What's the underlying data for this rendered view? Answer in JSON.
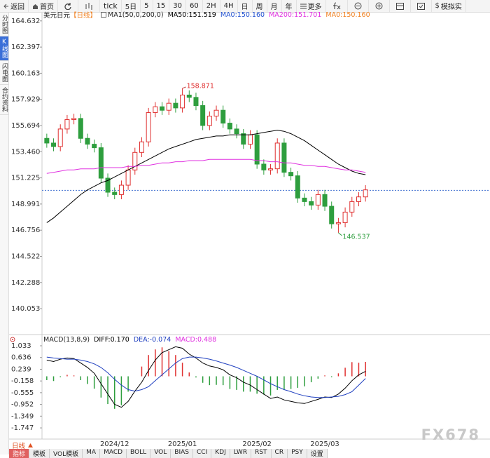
{
  "toolbar": {
    "buttons": [
      "返回",
      "首页",
      "tick",
      "5日",
      "5",
      "15",
      "30",
      "60",
      "2H",
      "4H",
      "日",
      "周",
      "月",
      "年",
      "更多",
      "模拟实"
    ]
  },
  "sidebar": {
    "tabs": [
      "分时图",
      "K线图",
      "闪电图",
      "合约资料"
    ]
  },
  "chart_data": [
    {
      "type": "candlestick",
      "title": "美元日元",
      "period": "【日线】",
      "params": "MA1(50,0,200,0)",
      "extra_labels": [
        {
          "text": "MA0:150.160",
          "color": "#2050d0"
        },
        {
          "text": "MA0:150.160",
          "color": "#f08020"
        }
      ],
      "categories": [
        null,
        null,
        null,
        null,
        null,
        null,
        null,
        null,
        null,
        null,
        "2024/12",
        null,
        null,
        null,
        null,
        null,
        null,
        null,
        null,
        null,
        "2025/01",
        null,
        null,
        null,
        null,
        null,
        null,
        null,
        null,
        null,
        null,
        "2025/02",
        null,
        null,
        null,
        null,
        null,
        null,
        null,
        null,
        null,
        "2025/03",
        null,
        null,
        null,
        null,
        null,
        null
      ],
      "open": [
        154.6,
        154.2,
        153.9,
        155.4,
        156.2,
        156.3,
        154.6,
        154.1,
        153.8,
        151.2,
        150.0,
        149.8,
        150.6,
        151.9,
        153.4,
        154.3,
        156.8,
        157.3,
        157.0,
        157.6,
        157.2,
        158.3,
        158.1,
        157.4,
        155.7,
        156.5,
        157.0,
        155.9,
        155.4,
        155.0,
        154.1,
        154.9,
        152.4,
        151.9,
        152.0,
        154.2,
        151.7,
        151.4,
        149.5,
        149.2,
        148.9,
        149.8,
        148.8,
        147.3,
        147.4,
        148.3,
        149.2,
        149.6
      ],
      "high": [
        155.0,
        154.6,
        155.8,
        156.6,
        156.7,
        156.7,
        155.0,
        154.5,
        154.2,
        151.6,
        150.4,
        151.0,
        152.3,
        153.8,
        154.7,
        157.2,
        157.7,
        157.7,
        158.0,
        158.0,
        158.871,
        158.7,
        158.5,
        157.8,
        156.9,
        157.4,
        157.4,
        156.3,
        155.8,
        155.4,
        155.3,
        155.3,
        152.8,
        152.4,
        154.6,
        154.6,
        152.1,
        151.8,
        149.9,
        149.6,
        150.2,
        150.2,
        149.2,
        147.8,
        148.7,
        149.6,
        150.0,
        150.6
      ],
      "low": [
        153.8,
        153.5,
        153.5,
        155.0,
        155.8,
        154.2,
        153.7,
        153.4,
        150.8,
        149.6,
        149.4,
        149.4,
        150.2,
        151.5,
        153.0,
        153.9,
        156.4,
        156.6,
        156.6,
        156.8,
        156.8,
        157.7,
        157.0,
        155.3,
        155.3,
        156.1,
        155.5,
        155.0,
        154.6,
        153.7,
        153.7,
        152.0,
        151.5,
        151.5,
        151.6,
        151.3,
        151.0,
        149.1,
        148.8,
        148.5,
        148.5,
        148.4,
        146.9,
        146.537,
        147.0,
        147.9,
        148.8,
        149.2
      ],
      "close": [
        154.2,
        153.9,
        155.4,
        156.2,
        156.3,
        154.6,
        154.1,
        153.8,
        151.2,
        150.0,
        149.8,
        150.6,
        151.9,
        153.4,
        154.3,
        156.8,
        157.3,
        157.0,
        157.6,
        157.2,
        158.3,
        158.1,
        157.4,
        155.7,
        156.5,
        157.0,
        155.9,
        155.4,
        155.0,
        154.1,
        154.9,
        152.4,
        151.9,
        152.0,
        154.2,
        151.7,
        151.4,
        149.5,
        149.2,
        148.9,
        149.8,
        148.8,
        147.3,
        147.4,
        148.3,
        149.2,
        149.6,
        150.2
      ],
      "up_color": "#e03030",
      "down_color": "#2e9e3e",
      "series": [
        {
          "name": "MA50:151.519",
          "color": "#000000",
          "values": [
            147.4,
            147.8,
            148.3,
            148.8,
            149.3,
            149.8,
            150.2,
            150.5,
            150.8,
            151.0,
            151.3,
            151.6,
            151.9,
            152.2,
            152.5,
            152.8,
            153.1,
            153.4,
            153.7,
            153.9,
            154.1,
            154.3,
            154.5,
            154.6,
            154.7,
            154.8,
            154.8,
            154.9,
            154.9,
            154.9,
            154.9,
            155.0,
            155.1,
            155.2,
            155.3,
            155.2,
            155.0,
            154.7,
            154.4,
            154.0,
            153.6,
            153.2,
            152.8,
            152.4,
            152.1,
            151.8,
            151.6,
            151.5
          ]
        },
        {
          "name": "MA200:151.701",
          "color": "#e030e0",
          "values": [
            151.6,
            151.7,
            151.8,
            151.9,
            151.9,
            152.0,
            152.0,
            152.0,
            152.1,
            152.1,
            152.1,
            152.1,
            152.2,
            152.2,
            152.3,
            152.3,
            152.4,
            152.5,
            152.5,
            152.6,
            152.6,
            152.7,
            152.7,
            152.7,
            152.8,
            152.8,
            152.8,
            152.8,
            152.8,
            152.8,
            152.8,
            152.7,
            152.7,
            152.6,
            152.6,
            152.5,
            152.5,
            152.4,
            152.3,
            152.3,
            152.2,
            152.2,
            152.1,
            152.0,
            151.9,
            151.9,
            151.8,
            151.7
          ]
        }
      ],
      "reference_line": 150.16,
      "ylim": [
        138.5,
        165.1
      ],
      "yticks": [
        164.632,
        162.397,
        160.163,
        157.929,
        155.694,
        {
          "value": 153.46,
          "label": "153.460"
        },
        151.225,
        148.991,
        146.756,
        144.522,
        142.288,
        140.053
      ]
    },
    {
      "type": "macd",
      "title": "MACD(13,8,9)",
      "up_color": "#e03030",
      "down_color": "#2e9e3e",
      "series": [
        {
          "name": "DIFF:0.170",
          "color": "#000000",
          "kind": "line",
          "values": [
            0.55,
            0.5,
            0.58,
            0.62,
            0.6,
            0.45,
            0.3,
            0.1,
            -0.25,
            -0.6,
            -0.95,
            -1.05,
            -0.85,
            -0.5,
            -0.2,
            0.2,
            0.55,
            0.8,
            0.9,
            1.0,
            0.95,
            0.75,
            0.62,
            0.45,
            0.35,
            0.3,
            0.22,
            0.05,
            -0.05,
            -0.2,
            -0.3,
            -0.45,
            -0.6,
            -0.75,
            -0.7,
            -0.8,
            -0.85,
            -0.9,
            -0.92,
            -0.85,
            -0.78,
            -0.7,
            -0.72,
            -0.6,
            -0.4,
            -0.15,
            0.05,
            0.17
          ]
        },
        {
          "name": "DEA:-0.074",
          "color": "#2040c0",
          "kind": "line",
          "values": [
            0.65,
            0.62,
            0.6,
            0.58,
            0.58,
            0.55,
            0.5,
            0.42,
            0.3,
            0.12,
            -0.1,
            -0.3,
            -0.45,
            -0.5,
            -0.45,
            -0.35,
            -0.15,
            0.05,
            0.25,
            0.45,
            0.6,
            0.65,
            0.65,
            0.62,
            0.58,
            0.52,
            0.45,
            0.38,
            0.3,
            0.2,
            0.1,
            0.0,
            -0.12,
            -0.25,
            -0.35,
            -0.45,
            -0.52,
            -0.6,
            -0.66,
            -0.7,
            -0.72,
            -0.72,
            -0.7,
            -0.68,
            -0.62,
            -0.52,
            -0.3,
            -0.074
          ]
        },
        {
          "name": "MACD:0.488",
          "color": "#e030e0",
          "kind": "bar",
          "values": [
            -0.13,
            -0.16,
            -0.03,
            0.05,
            0.03,
            -0.13,
            -0.26,
            -0.42,
            -0.72,
            -0.94,
            -1.1,
            -0.98,
            -0.52,
            0.0,
            0.33,
            0.72,
            0.91,
            0.98,
            0.85,
            0.72,
            0.46,
            0.13,
            -0.04,
            -0.22,
            -0.3,
            -0.29,
            -0.3,
            -0.43,
            -0.46,
            -0.52,
            -0.52,
            -0.59,
            -0.62,
            -0.65,
            -0.46,
            -0.46,
            -0.43,
            -0.39,
            -0.34,
            -0.2,
            -0.08,
            0.03,
            -0.03,
            0.1,
            0.29,
            0.48,
            0.46,
            0.488
          ]
        }
      ],
      "ylim": [
        -2.03,
        1.342
      ],
      "yticks": [
        1.033,
        0.636,
        0.239,
        -0.158,
        -0.555,
        -0.952,
        -1.349,
        -1.747
      ]
    }
  ],
  "bottom": {
    "period": "日线",
    "tabs": [
      "指标",
      "模板",
      "VOL模板",
      "MA",
      "MACD",
      "BOLL",
      "VOL",
      "BIAS",
      "CCI",
      "KDJ",
      "LWR",
      "RST",
      "CR",
      "PSY",
      "设置"
    ]
  },
  "watermark": "FX678"
}
